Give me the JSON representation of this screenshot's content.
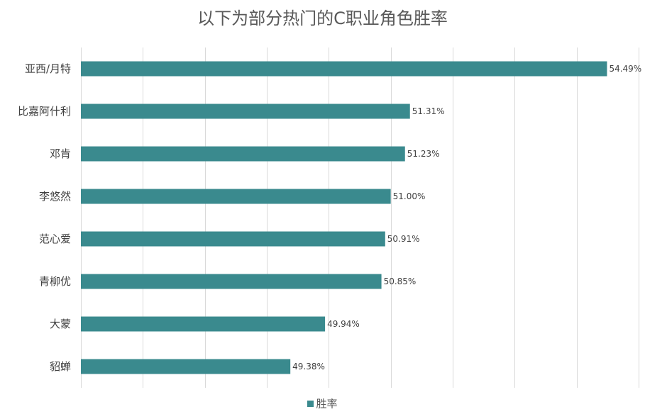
{
  "chart_data": {
    "type": "bar",
    "orientation": "horizontal",
    "title": "以下为部分热门的C职业角色胜率",
    "categories": [
      "亚西/月特",
      "比嘉阿什利",
      "邓肯",
      "李悠然",
      "范心爱",
      "青柳优",
      "大蒙",
      "貂蝉"
    ],
    "series": [
      {
        "name": "胜率",
        "values": [
          54.49,
          51.31,
          51.23,
          51.0,
          50.91,
          50.85,
          49.94,
          49.38
        ],
        "labels": [
          "54.49%",
          "51.31%",
          "51.23%",
          "51.00%",
          "50.91%",
          "50.85%",
          "49.94%",
          "49.38%"
        ]
      }
    ],
    "xlim": [
      46,
      55
    ],
    "grid": true,
    "tick_labels_shown": false,
    "legend_position": "bottom",
    "colors": {
      "bar": "#3a8a8e",
      "grid": "#d9d9d9",
      "text": "#404040"
    }
  }
}
